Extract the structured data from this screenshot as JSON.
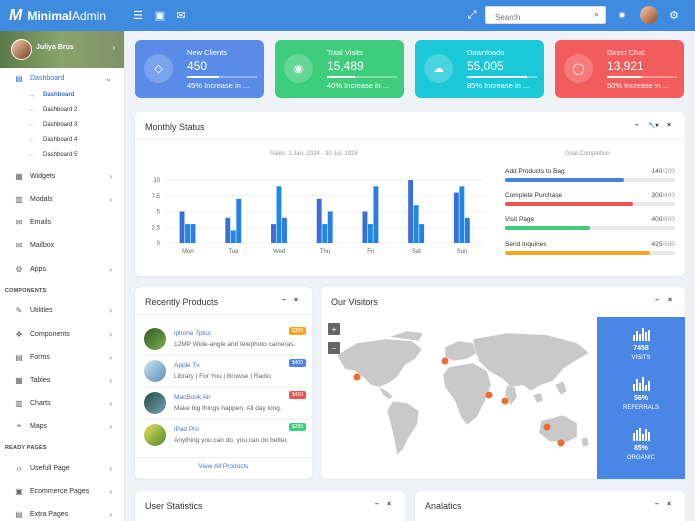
{
  "app": {
    "logo_mark": "M",
    "logo_bold": "Minimal",
    "logo_light": "Admin"
  },
  "topbar": {
    "search_placeholder": "Search"
  },
  "profile": {
    "name": "Juliya Brus"
  },
  "sidebar": {
    "dashboard": "Dashboard",
    "sub": [
      "Dashboard",
      "Dashboard 2",
      "Dashboard 3",
      "Dashboard 4",
      "Dashboard 5"
    ],
    "main": [
      "Widgets",
      "Modals",
      "Emails",
      "Mailbox",
      "Apps"
    ],
    "components_label": "COMPONENTS",
    "components": [
      "Utilities",
      "Components",
      "Forms",
      "Tables",
      "Charts",
      "Maps"
    ],
    "ready_label": "READY PAGES",
    "ready": [
      "Usefull Page",
      "Ecommerce Pages",
      "Extra Pages"
    ]
  },
  "stats": [
    {
      "label": "New Clients",
      "value": "450",
      "sub": "45% Increase in ...",
      "progress": 0.45,
      "color": "#5b8be8",
      "icon": "tag-icon"
    },
    {
      "label": "Total Visits",
      "value": "15,489",
      "sub": "40% Increase in ...",
      "progress": 0.4,
      "color": "#3ecd7c",
      "icon": "eye-icon"
    },
    {
      "label": "Downloads",
      "value": "55,005",
      "sub": "85% Increase in ...",
      "progress": 0.85,
      "color": "#1bc8d8",
      "icon": "cloud-download-icon"
    },
    {
      "label": "Direct Chat",
      "value": "13,921",
      "sub": "50% Increase in ...",
      "progress": 0.5,
      "color": "#f25c5c",
      "icon": "chat-icon"
    }
  ],
  "monthly": {
    "title": "Monthly Status",
    "chart_subtitle": "Sales: 1 Jan, 2024 - 30 Jul, 2024",
    "goal_title": "Goal Completion"
  },
  "chart_data": {
    "type": "bar",
    "categories": [
      "Mon",
      "Tue",
      "Wed",
      "Thu",
      "Fri",
      "Sat",
      "Sun"
    ],
    "series": [
      {
        "values": [
          5,
          4,
          3,
          7,
          5,
          10,
          8
        ],
        "color": "#3b6fd8"
      },
      {
        "values": [
          3,
          2,
          9,
          3,
          3,
          6,
          9
        ],
        "color": "#1e88e5"
      },
      {
        "values": [
          3,
          7,
          4,
          5,
          9,
          3,
          4
        ],
        "color": "#2a7ee0"
      }
    ],
    "ylim": [
      0,
      10
    ],
    "yticks": [
      0,
      2.5,
      5,
      7.5,
      10
    ],
    "ytick_labels": [
      "0",
      "2.5",
      "5",
      "7.5",
      "10"
    ]
  },
  "goals": [
    {
      "label": "Add Products to Bag",
      "value": "140",
      "total": "/200",
      "frac": 0.7,
      "color": "#4a7fe6"
    },
    {
      "label": "Complete Purchase",
      "value": "300",
      "total": "/400",
      "frac": 0.75,
      "color": "#ef5350"
    },
    {
      "label": "Visit Page",
      "value": "400",
      "total": "/800",
      "frac": 0.5,
      "color": "#3ecd7c"
    },
    {
      "label": "Send Inquiries",
      "value": "425",
      "total": "/500",
      "frac": 0.85,
      "color": "#f5a623"
    }
  ],
  "products": {
    "title": "Recently Products",
    "items": [
      {
        "name": "iphone 7plus",
        "desc": "12MP Wide-angle and telephoto cameras.",
        "price": "$300",
        "badge": "#f5a623"
      },
      {
        "name": "Apple Tv",
        "desc": "Library | For You | Browse | Radio",
        "price": "$400",
        "badge": "#4a86e5"
      },
      {
        "name": "MacBook Air",
        "desc": "Make big things happen. All day long.",
        "price": "$450",
        "badge": "#ef5350"
      },
      {
        "name": "iPad Pro",
        "desc": "Anything you can do, you can do better.",
        "price": "$289",
        "badge": "#3ecd7c"
      }
    ],
    "view_all": "View All Products"
  },
  "visitors": {
    "title": "Our Visitors",
    "stats": [
      {
        "value": "7458",
        "label": "VISITS"
      },
      {
        "value": "56%",
        "label": "REFERRALS"
      },
      {
        "value": "85%",
        "label": "ORGANIC"
      }
    ]
  },
  "bottom": {
    "user_stats": "User Statistics",
    "analytics": "Analatics"
  },
  "tools": {
    "minimize": "–",
    "close": "×",
    "wrench": "🔧▾"
  }
}
